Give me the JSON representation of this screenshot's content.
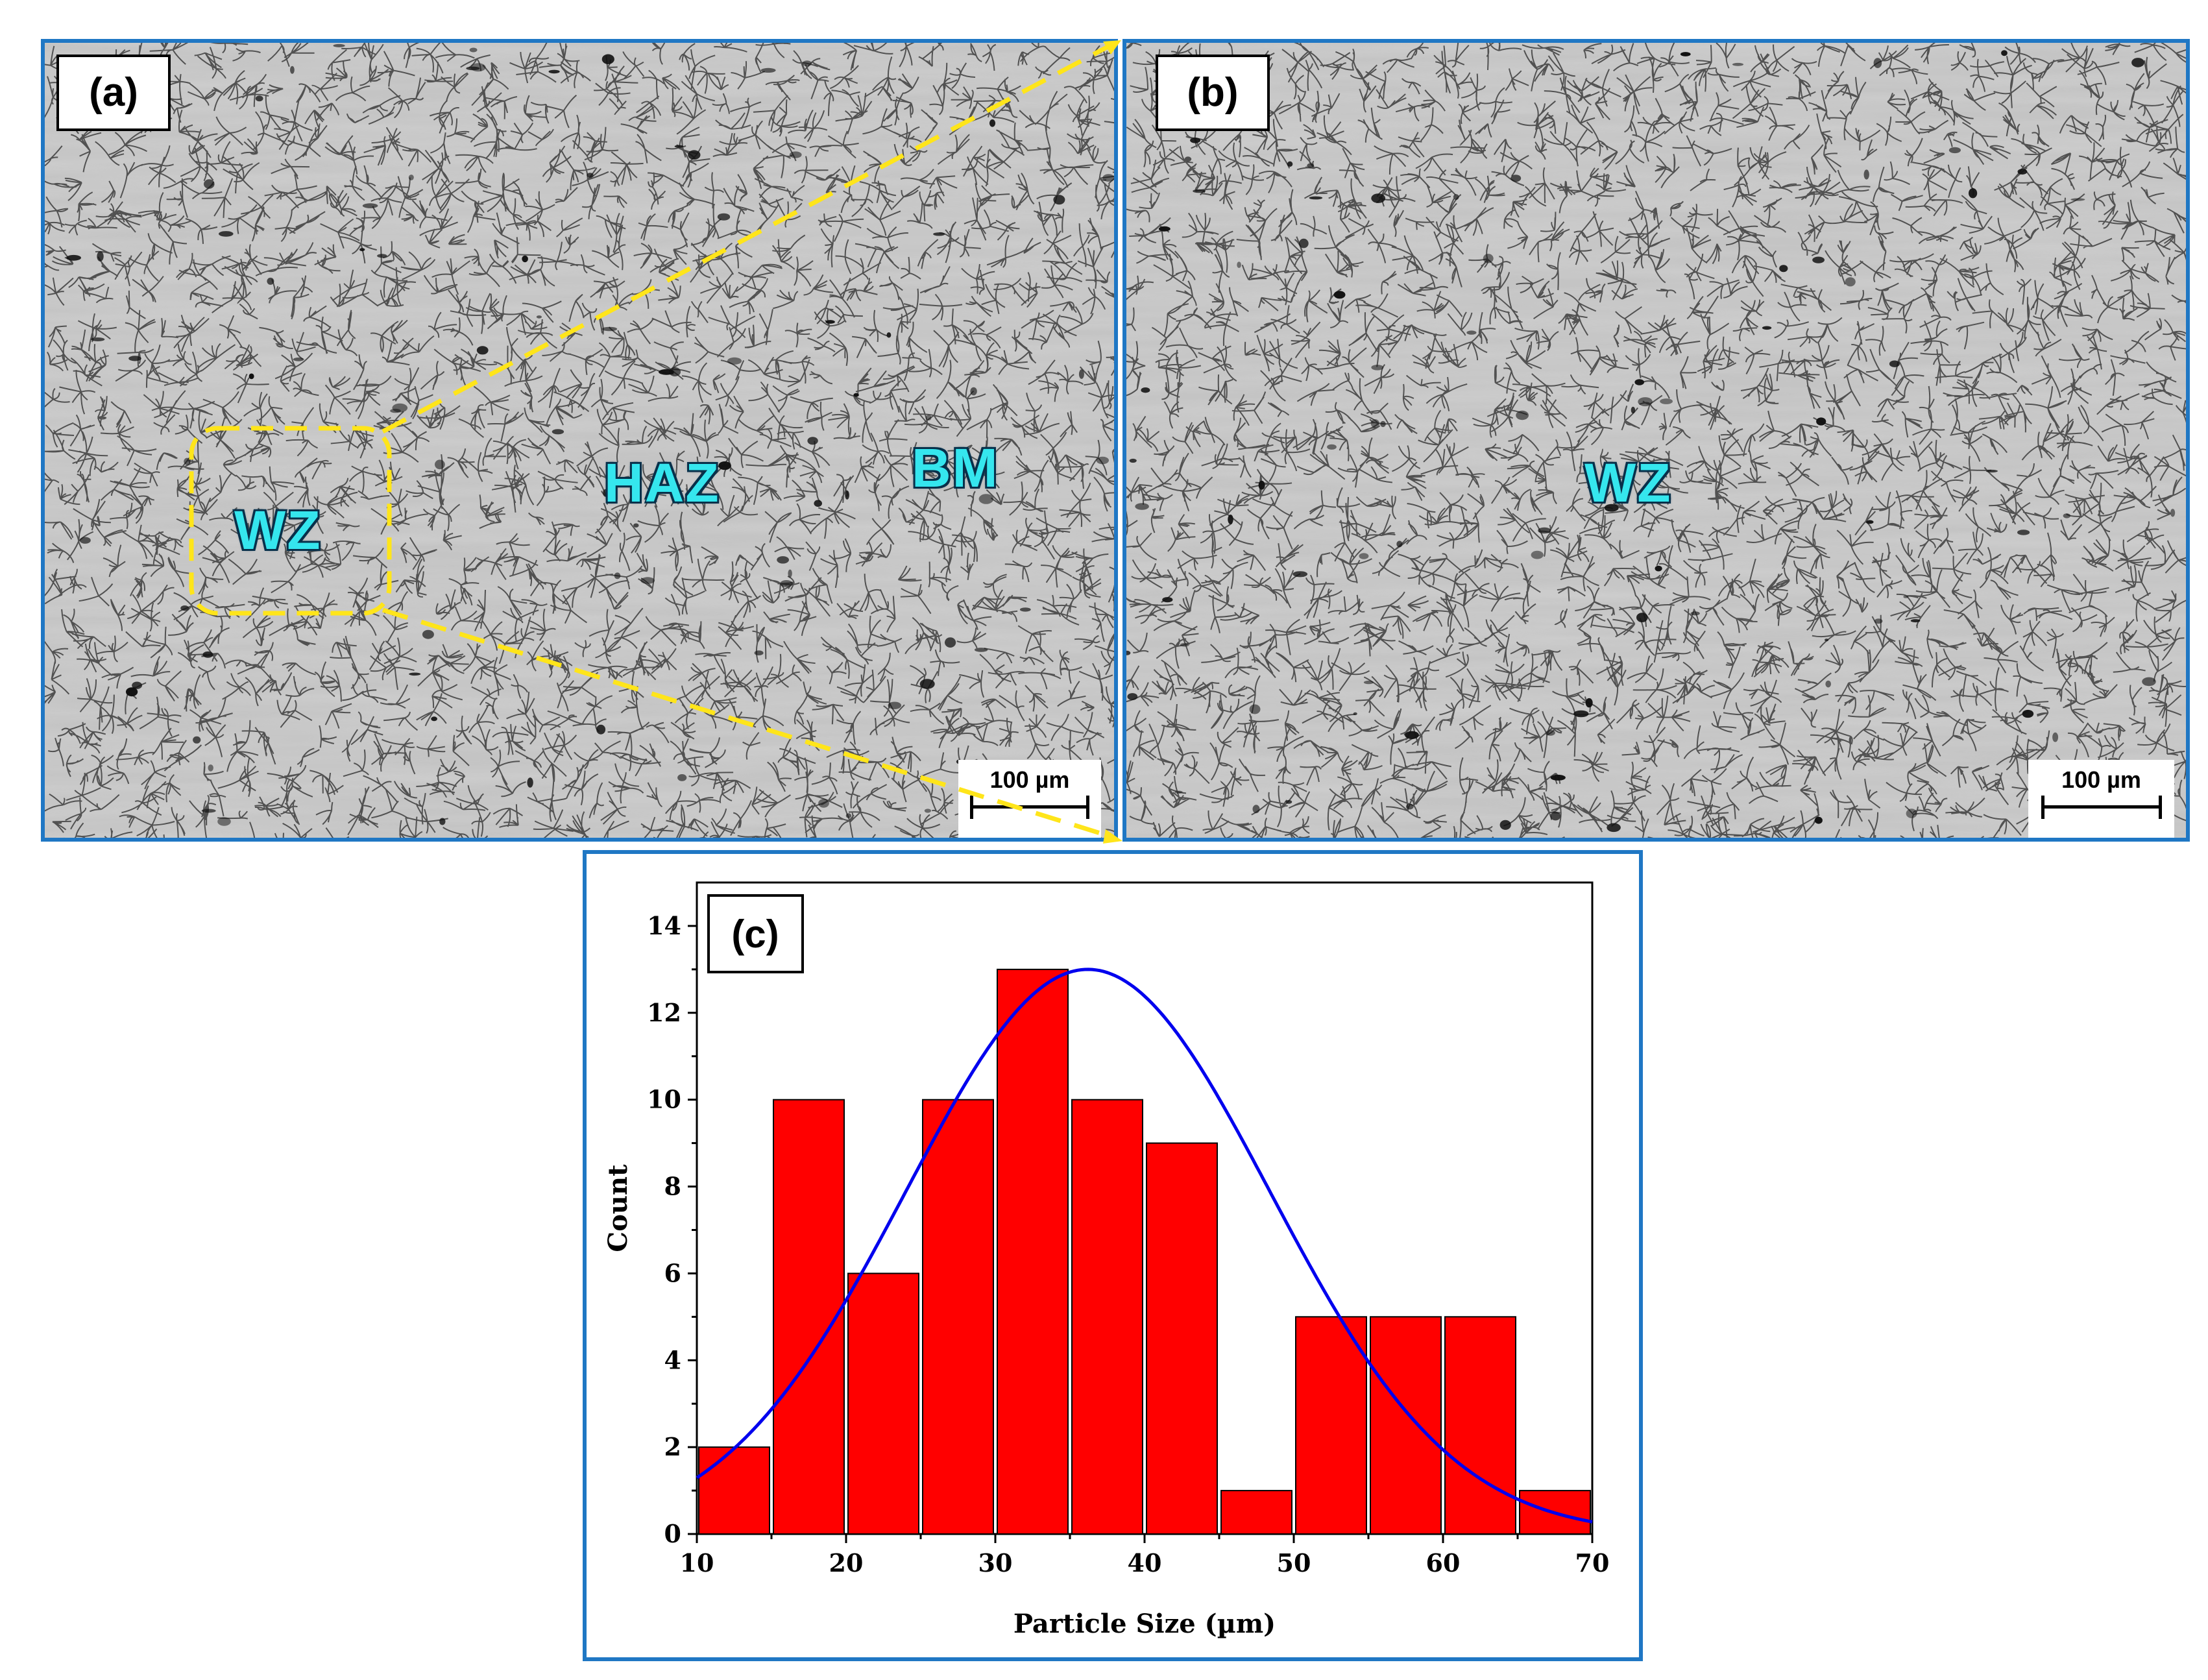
{
  "panels": {
    "a": {
      "label": "(a)",
      "zones": {
        "wz": "WZ",
        "haz": "HAZ",
        "bm": "BM"
      },
      "scale_bar": "100 µm"
    },
    "b": {
      "label": "(b)",
      "zones": {
        "wz": "WZ"
      },
      "scale_bar": "100 µm"
    },
    "c": {
      "label": "(c)"
    }
  },
  "colors": {
    "panel_border": "#1f77c4",
    "highlight_dashes": "#ffe51a",
    "zone_text": "#35e6ee",
    "bars": "#ff0000",
    "fit_curve": "#0000ee"
  },
  "chart_data": {
    "type": "bar",
    "title": "",
    "xlabel": "Particle Size (µm)",
    "ylabel": "Count",
    "xlim": [
      10,
      70
    ],
    "ylim": [
      0,
      15
    ],
    "xticks": [
      10,
      20,
      30,
      40,
      50,
      60,
      70
    ],
    "yticks": [
      0,
      2,
      4,
      6,
      8,
      10,
      12,
      14
    ],
    "bin_width": 5,
    "bins": [
      {
        "start": 10,
        "end": 15,
        "count": 2
      },
      {
        "start": 15,
        "end": 20,
        "count": 10
      },
      {
        "start": 20,
        "end": 25,
        "count": 6
      },
      {
        "start": 25,
        "end": 30,
        "count": 10
      },
      {
        "start": 30,
        "end": 35,
        "count": 13
      },
      {
        "start": 35,
        "end": 40,
        "count": 10
      },
      {
        "start": 40,
        "end": 45,
        "count": 9
      },
      {
        "start": 45,
        "end": 50,
        "count": 1
      },
      {
        "start": 50,
        "end": 55,
        "count": 5
      },
      {
        "start": 55,
        "end": 60,
        "count": 5
      },
      {
        "start": 60,
        "end": 65,
        "count": 5
      },
      {
        "start": 65,
        "end": 70,
        "count": 1
      }
    ],
    "fit": {
      "type": "normal",
      "mean": 36.2,
      "sd": 12.2,
      "peak": 13.0
    },
    "grid": false,
    "legend": "none"
  }
}
